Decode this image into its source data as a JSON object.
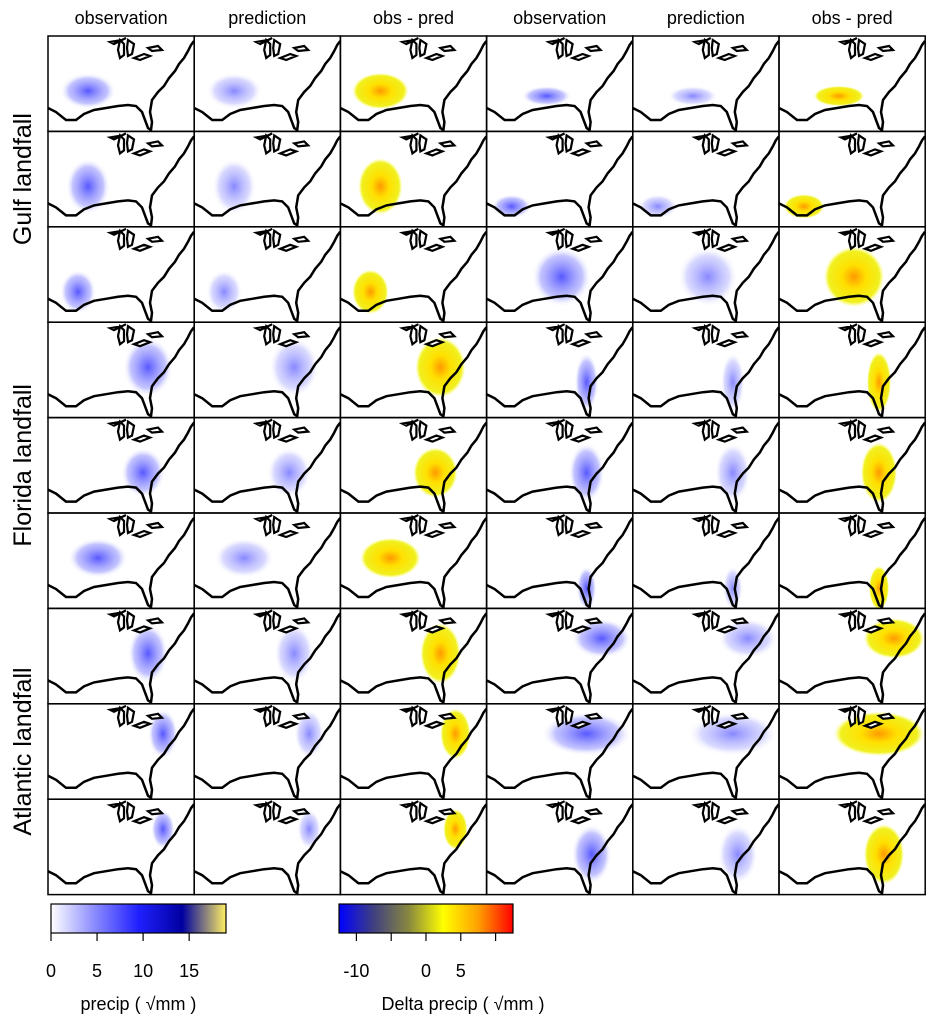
{
  "figure": {
    "column_titles": [
      "observation",
      "prediction",
      "obs - pred",
      "observation",
      "prediction",
      "obs - pred"
    ],
    "row_groups": [
      "Gulf landfall",
      "Florida landfall",
      "Atlantic landfall"
    ],
    "colorbars": [
      {
        "label": "precip ( √mm )",
        "lim": [
          0,
          19
        ],
        "ticks": [
          0,
          5,
          10,
          15
        ],
        "colors": [
          "#ffffff",
          "#8a8aff",
          "#2020ff",
          "#0000a0",
          "#fff060"
        ]
      },
      {
        "label": "Delta precip ( √mm )",
        "lim": [
          -12.5,
          12.5
        ],
        "ticks": [
          -10,
          {
            "value": -5,
            "label": null
          },
          0,
          5,
          {
            "value": 10,
            "label": null
          }
        ],
        "colors": [
          "#0000ff",
          "#404080",
          "#888840",
          "#ffff00",
          "#ffa000",
          "#ff0000"
        ]
      }
    ]
  }
}
